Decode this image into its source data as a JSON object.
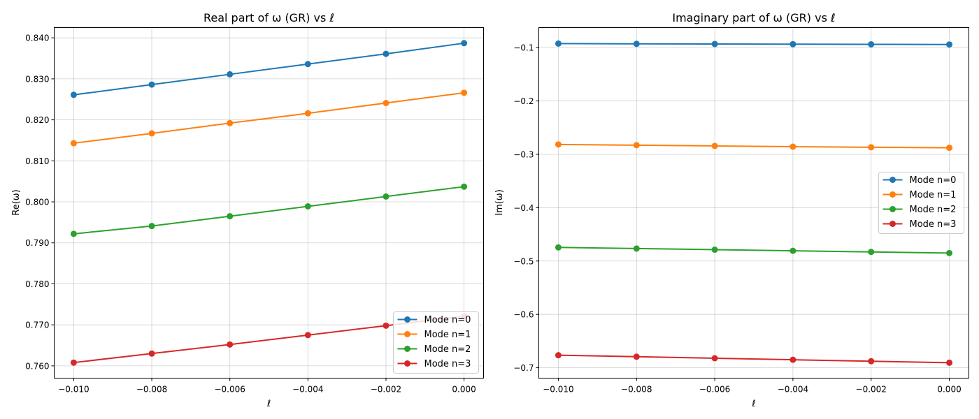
{
  "chart_data": [
    {
      "type": "line",
      "title": "Real part of ω (GR) vs ℓ",
      "xlabel": "ℓ",
      "ylabel": "Re(ω)",
      "xlim": [
        -0.0105,
        0.0005
      ],
      "ylim": [
        0.757,
        0.8425
      ],
      "grid": true,
      "x": [
        -0.01,
        -0.008,
        -0.006,
        -0.004,
        -0.002,
        0.0
      ],
      "xticks": [
        -0.01,
        -0.008,
        -0.006,
        -0.004,
        -0.002,
        0.0
      ],
      "xtick_labels": [
        "−0.010",
        "−0.008",
        "−0.006",
        "−0.004",
        "−0.002",
        "0.000"
      ],
      "yticks": [
        0.76,
        0.77,
        0.78,
        0.79,
        0.8,
        0.81,
        0.82,
        0.83,
        0.84
      ],
      "ytick_labels": [
        "0.760",
        "0.770",
        "0.780",
        "0.790",
        "0.800",
        "0.810",
        "0.820",
        "0.830",
        "0.840"
      ],
      "legend_position": "bottom-right",
      "series": [
        {
          "name": "Mode n=0",
          "color": "#1f77b4",
          "values": [
            0.8261,
            0.8286,
            0.8311,
            0.8336,
            0.8361,
            0.8387
          ]
        },
        {
          "name": "Mode n=1",
          "color": "#ff7f0e",
          "values": [
            0.8143,
            0.8167,
            0.8192,
            0.8216,
            0.8241,
            0.8266
          ]
        },
        {
          "name": "Mode n=2",
          "color": "#2ca02c",
          "values": [
            0.7922,
            0.7941,
            0.7965,
            0.7989,
            0.8013,
            0.8037
          ]
        },
        {
          "name": "Mode n=3",
          "color": "#d62728",
          "values": [
            0.7608,
            0.763,
            0.7652,
            0.7675,
            0.7698,
            0.7721
          ]
        }
      ]
    },
    {
      "type": "line",
      "title": "Imaginary part of ω (GR) vs ℓ",
      "xlabel": "ℓ",
      "ylabel": "Im(ω)",
      "xlim": [
        -0.0105,
        0.0005
      ],
      "ylim": [
        -0.7195,
        -0.0625
      ],
      "grid": true,
      "x": [
        -0.01,
        -0.008,
        -0.006,
        -0.004,
        -0.002,
        0.0
      ],
      "xticks": [
        -0.01,
        -0.008,
        -0.006,
        -0.004,
        -0.002,
        0.0
      ],
      "xtick_labels": [
        "−0.010",
        "−0.008",
        "−0.006",
        "−0.004",
        "−0.002",
        "0.000"
      ],
      "yticks": [
        -0.7,
        -0.6,
        -0.5,
        -0.4,
        -0.3,
        -0.2,
        -0.1
      ],
      "ytick_labels": [
        "−0.7",
        "−0.6",
        "−0.5",
        "−0.4",
        "−0.3",
        "−0.2",
        "−0.1"
      ],
      "legend_position": "center-right",
      "series": [
        {
          "name": "Mode n=0",
          "color": "#1f77b4",
          "values": [
            -0.0925,
            -0.093,
            -0.0933,
            -0.0936,
            -0.0939,
            -0.0942
          ]
        },
        {
          "name": "Mode n=1",
          "color": "#ff7f0e",
          "values": [
            -0.2815,
            -0.2829,
            -0.2843,
            -0.2857,
            -0.2868,
            -0.2877
          ]
        },
        {
          "name": "Mode n=2",
          "color": "#2ca02c",
          "values": [
            -0.4745,
            -0.4766,
            -0.4787,
            -0.4808,
            -0.4829,
            -0.485
          ]
        },
        {
          "name": "Mode n=3",
          "color": "#d62728",
          "values": [
            -0.6765,
            -0.6793,
            -0.6822,
            -0.685,
            -0.6878,
            -0.6906
          ]
        }
      ]
    }
  ]
}
